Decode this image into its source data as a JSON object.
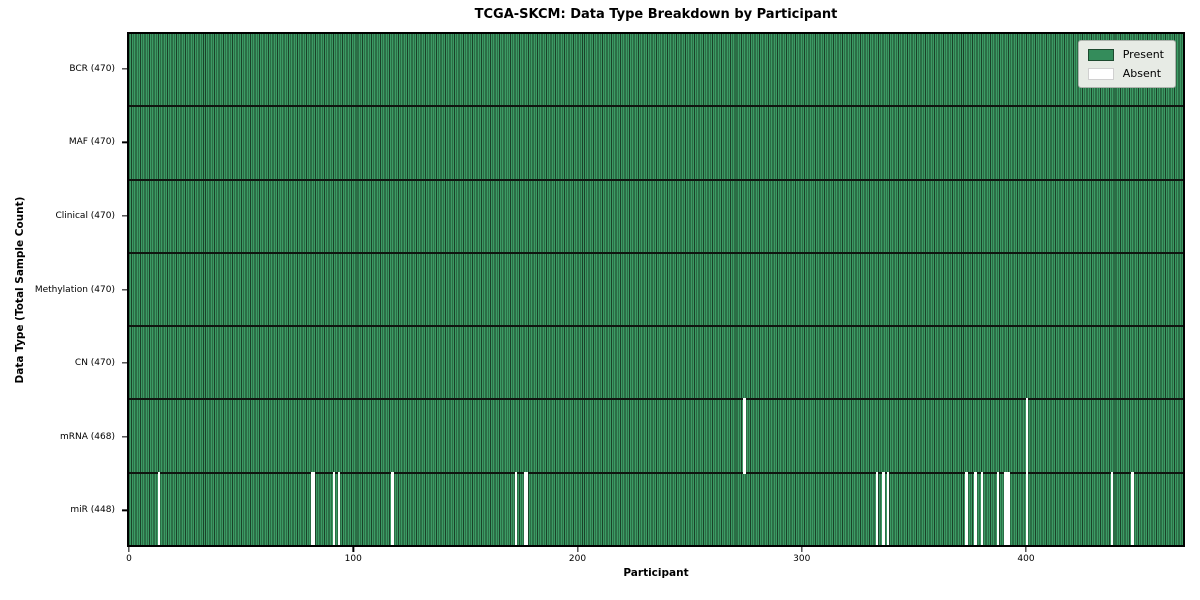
{
  "title": "TCGA-SKCM: Data Type Breakdown by Participant",
  "xlabel": "Participant",
  "ylabel": "Data Type (Total Sample Count)",
  "legend": {
    "present_label": "Present",
    "absent_label": "Absent"
  },
  "colors": {
    "present_fill": "#3c9a64",
    "present_edge": "#1a4229",
    "absent": "#ffffff",
    "row_separator": "#101510",
    "spine": "#000000",
    "legend_bg": "#e7ebe5"
  },
  "chart_data": {
    "type": "heatmap",
    "title": "TCGA-SKCM: Data Type Breakdown by Participant",
    "xlabel": "Participant",
    "ylabel": "Data Type (Total Sample Count)",
    "legend_entries": [
      "Present",
      "Absent"
    ],
    "legend_position": "upper right",
    "n_participants": 470,
    "xlim": [
      0,
      470
    ],
    "x_ticks": [
      0,
      100,
      200,
      300,
      400
    ],
    "rows": [
      {
        "label": "BCR (470)",
        "data_type": "BCR",
        "present_count": 470,
        "absent_participants": []
      },
      {
        "label": "MAF (470)",
        "data_type": "MAF",
        "present_count": 470,
        "absent_participants": []
      },
      {
        "label": "Clinical (470)",
        "data_type": "Clinical",
        "present_count": 470,
        "absent_participants": []
      },
      {
        "label": "Methylation (470)",
        "data_type": "Methylation",
        "present_count": 470,
        "absent_participants": []
      },
      {
        "label": "CN (470)",
        "data_type": "CN",
        "present_count": 470,
        "absent_participants": []
      },
      {
        "label": "mRNA (468)",
        "data_type": "mRNA",
        "present_count": 468,
        "absent_participants": [
          274,
          400
        ]
      },
      {
        "label": "miR (448)",
        "data_type": "miR",
        "present_count": 448,
        "absent_participants": [
          13,
          81,
          82,
          91,
          93,
          117,
          172,
          176,
          177,
          333,
          336,
          338,
          373,
          377,
          380,
          387,
          390,
          391,
          392,
          400,
          438,
          447
        ]
      }
    ]
  }
}
